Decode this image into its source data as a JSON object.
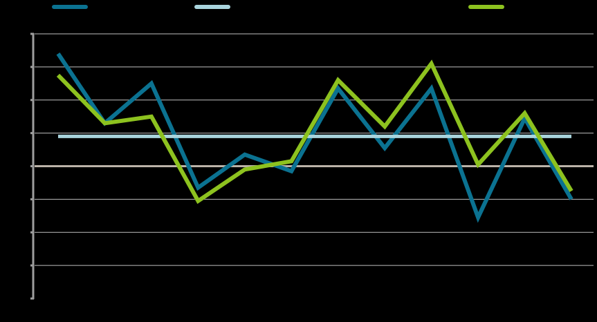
{
  "chart_data": {
    "type": "line",
    "title": "",
    "xlabel": "",
    "ylabel": "",
    "x": [
      1,
      2,
      3,
      4,
      5,
      6,
      7,
      8,
      9,
      10,
      11,
      12
    ],
    "ylim": [
      -4,
      4
    ],
    "y_ticks": [
      -4,
      -3,
      -2,
      -1,
      0,
      1,
      2,
      3,
      4
    ],
    "grid": true,
    "legend_placement": "top",
    "series": [
      {
        "color": "#0B7291",
        "values": [
          3.4,
          1.3,
          2.5,
          -0.65,
          0.35,
          -0.15,
          2.35,
          0.55,
          2.35,
          -1.55,
          1.45,
          -1.0
        ]
      },
      {
        "color": "#A9D4DD",
        "values": [
          0.9,
          0.9,
          0.9,
          0.9,
          0.9,
          0.9,
          0.9,
          0.9,
          0.9,
          0.9,
          0.9,
          0.9
        ]
      },
      {
        "color": "#8DC21F",
        "values": [
          2.75,
          1.3,
          1.5,
          -1.05,
          -0.1,
          0.15,
          2.6,
          1.2,
          3.1,
          0.05,
          1.6,
          -0.75
        ]
      }
    ],
    "colors": {
      "background": "#000000",
      "gridline": "#FFFFFF",
      "zero_line": "#BBB3A8",
      "axis": "#9E9E9E"
    }
  }
}
